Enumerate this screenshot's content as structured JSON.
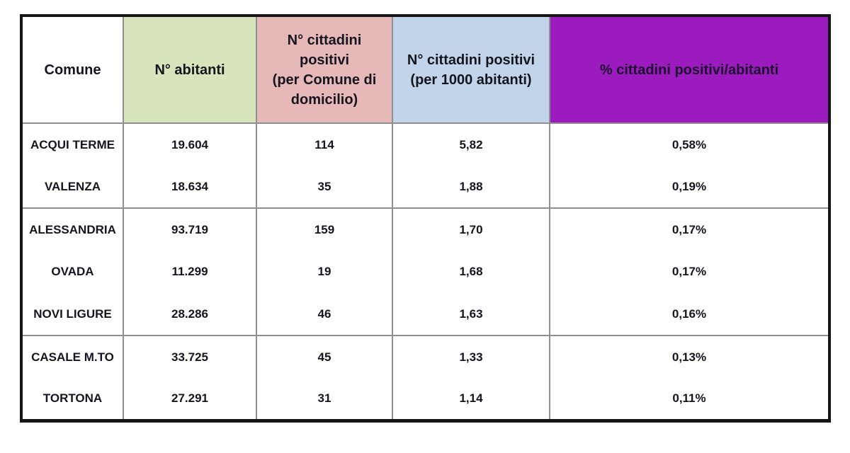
{
  "chart_data": {
    "type": "table",
    "columns": [
      "Comune",
      "N° abitanti",
      "N° cittadini positivi (per Comune di domicilio)",
      "N° cittadini positivi (per 1000 abitanti)",
      "% cittadini positivi/abitanti"
    ],
    "rows": [
      [
        "ACQUI TERME",
        "19.604",
        "114",
        "5,82",
        "0,58%"
      ],
      [
        "VALENZA",
        "18.634",
        "35",
        "1,88",
        "0,19%"
      ],
      [
        "ALESSANDRIA",
        "93.719",
        "159",
        "1,70",
        "0,17%"
      ],
      [
        "OVADA",
        "11.299",
        "19",
        "1,68",
        "0,17%"
      ],
      [
        "NOVI LIGURE",
        "28.286",
        "46",
        "1,63",
        "0,16%"
      ],
      [
        "CASALE M.TO",
        "33.725",
        "45",
        "1,33",
        "0,13%"
      ],
      [
        "TORTONA",
        "27.291",
        "31",
        "1,14",
        "0,11%"
      ]
    ],
    "row_groups": [
      [
        "ACQUI TERME",
        "VALENZA"
      ],
      [
        "ALESSANDRIA",
        "OVADA",
        "NOVI LIGURE"
      ],
      [
        "CASALE M.TO",
        "TORTONA"
      ]
    ]
  },
  "table": {
    "header": {
      "comune": "Comune",
      "abitanti": "N° abitanti",
      "positivi": "N° cittadini\npositivi\n(per Comune di\ndomicilio)",
      "per1000": "N° cittadini positivi\n(per 1000 abitanti)",
      "perc": "% cittadini positivi/abitanti"
    },
    "rows": [
      {
        "comune": "ACQUI TERME",
        "abitanti": "19.604",
        "positivi": "114",
        "per1000": "5,82",
        "perc": "0,58%"
      },
      {
        "comune": "VALENZA",
        "abitanti": "18.634",
        "positivi": "35",
        "per1000": "1,88",
        "perc": "0,19%"
      },
      {
        "comune": "ALESSANDRIA",
        "abitanti": "93.719",
        "positivi": "159",
        "per1000": "1,70",
        "perc": "0,17%"
      },
      {
        "comune": "OVADA",
        "abitanti": "11.299",
        "positivi": "19",
        "per1000": "1,68",
        "perc": "0,17%"
      },
      {
        "comune": "NOVI LIGURE",
        "abitanti": "28.286",
        "positivi": "46",
        "per1000": "1,63",
        "perc": "0,16%"
      },
      {
        "comune": "CASALE M.TO",
        "abitanti": "33.725",
        "positivi": "45",
        "per1000": "1,33",
        "perc": "0,13%"
      },
      {
        "comune": "TORTONA",
        "abitanti": "27.291",
        "positivi": "31",
        "per1000": "1,14",
        "perc": "0,11%"
      }
    ],
    "colors": {
      "header_comune_bg": "#FFFFFF",
      "header_abitanti_bg": "#D7E4BC",
      "header_positivi_bg": "#E6B8B7",
      "header_per1000_bg": "#C2D4EA",
      "header_perc_bg": "#9C1BBE",
      "text": "#15151F",
      "outer_border": "#161616",
      "inner_border": "#8F8F8F"
    }
  }
}
